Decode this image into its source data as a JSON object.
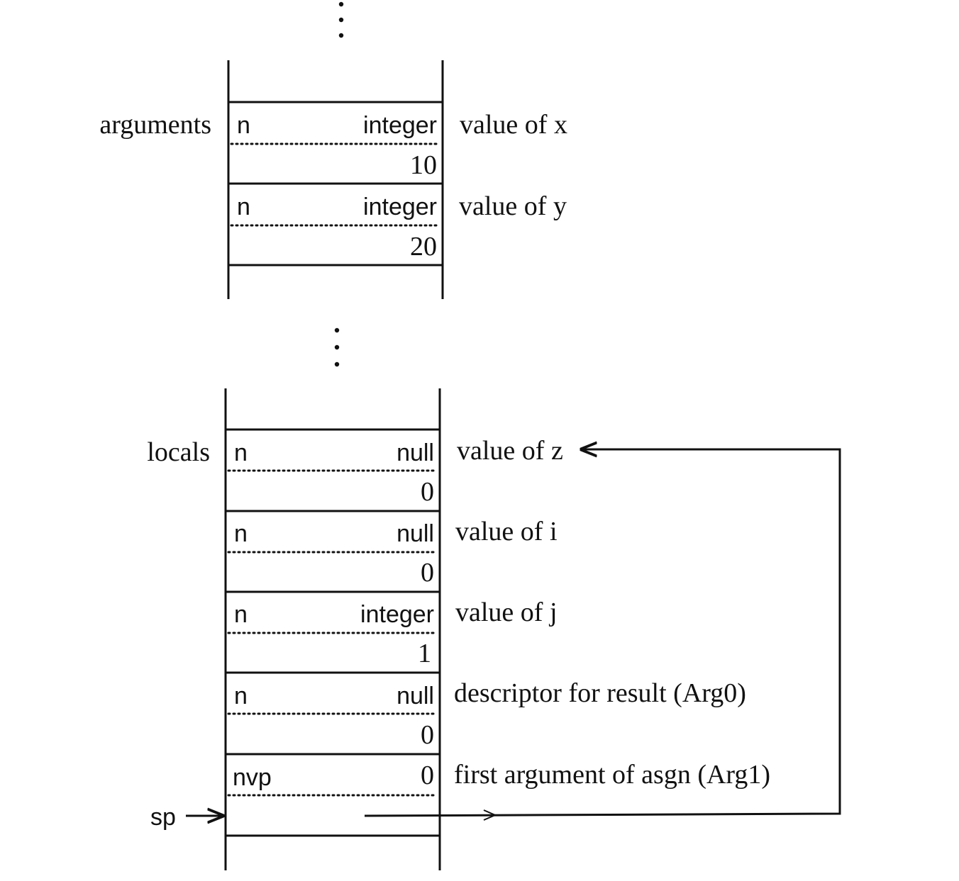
{
  "arguments_section": {
    "label": "arguments",
    "slots": [
      {
        "type_flag": "n",
        "type_name": "integer",
        "value": "10",
        "annotation": "value of x"
      },
      {
        "type_flag": "n",
        "type_name": "integer",
        "value": "20",
        "annotation": "value of y"
      }
    ]
  },
  "locals_section": {
    "label": "locals",
    "slots": [
      {
        "type_flag": "n",
        "type_name": "null",
        "value": "0",
        "annotation": "value of z"
      },
      {
        "type_flag": "n",
        "type_name": "null",
        "value": "0",
        "annotation": "value of i"
      },
      {
        "type_flag": "n",
        "type_name": "integer",
        "value": "1",
        "annotation": "value of j"
      },
      {
        "type_flag": "n",
        "type_name": "null",
        "value": "0",
        "annotation": "descriptor for result (Arg0)"
      },
      {
        "type_flag": "nvp",
        "type_name": "0",
        "value": "",
        "annotation": "first argument of asgn (Arg1)"
      }
    ]
  },
  "stack_pointer": {
    "label": "sp"
  },
  "colors": {
    "ink": "#111111",
    "paper": "#ffffff"
  }
}
